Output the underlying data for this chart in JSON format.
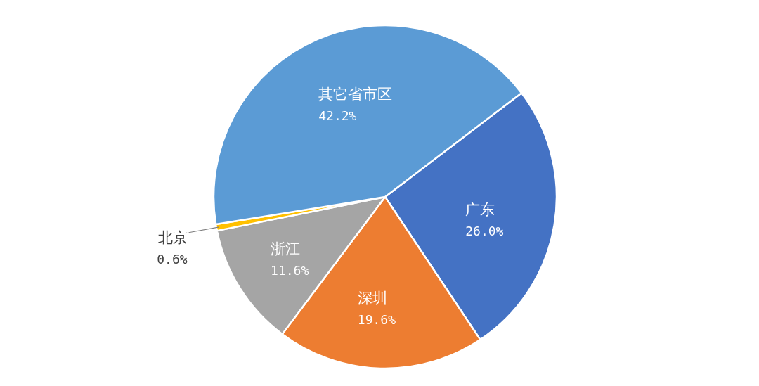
{
  "chart_data": {
    "type": "pie",
    "categories": [
      "广东",
      "深圳",
      "浙江",
      "北京",
      "其它省市区"
    ],
    "values": [
      26.0,
      19.6,
      11.6,
      0.6,
      42.2
    ],
    "value_labels": [
      "26.0%",
      "19.6%",
      "11.6%",
      "0.6%",
      "42.2%"
    ],
    "colors": [
      "#4472c4",
      "#ed7d31",
      "#a5a5a5",
      "#ffc000",
      "#5b9bd5"
    ],
    "legend": false
  }
}
